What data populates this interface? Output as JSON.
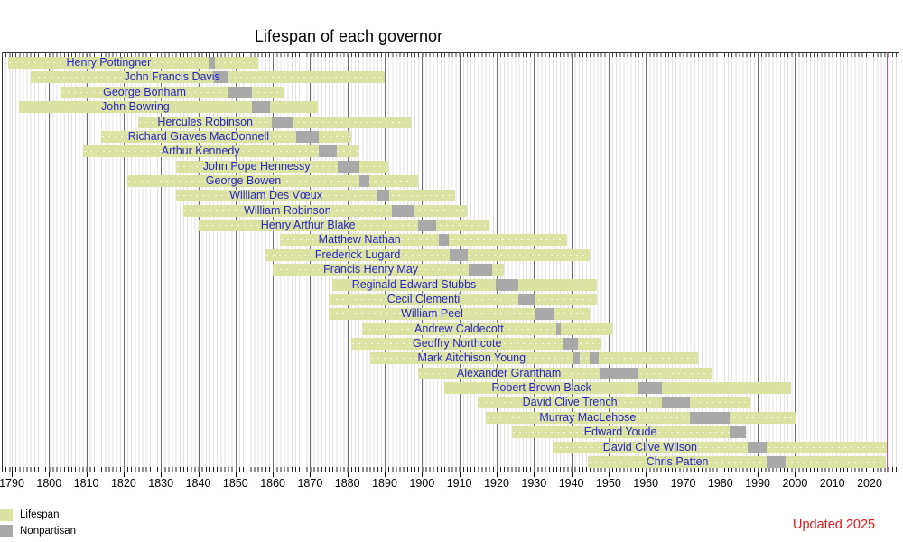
{
  "title": "Lifespan of each governor",
  "legend": {
    "items": [
      {
        "label": "Lifespan",
        "color": "#dce2a2"
      },
      {
        "label": "Nonpartisan",
        "color": "#a9a9a9"
      }
    ]
  },
  "updated_note": {
    "text": "Updated 2025",
    "color": "#e81414"
  },
  "chart_data": {
    "type": "timeline",
    "title": "Lifespan of each governor",
    "axis": {
      "min_year": 1788,
      "max_year": 2028,
      "minor_tick_interval": 1,
      "major_tick_interval": 10,
      "tick_labels": [
        1790,
        1800,
        1810,
        1820,
        1830,
        1840,
        1850,
        1860,
        1870,
        1880,
        1890,
        1900,
        1910,
        1920,
        1930,
        1940,
        1950,
        1960,
        1970,
        1980,
        1990,
        2000,
        2010,
        2020
      ]
    },
    "now_line_year": 2024.5,
    "colors": {
      "lifespan": "#dce2a2",
      "term": "#a9a9a9",
      "now_line": "#a95aa4",
      "label_text": "#2626c9",
      "decade_grid": "#6f6f6f",
      "annual_grid": "#e3e3e3"
    },
    "series_meaning": {
      "bar": "Lifespan",
      "segment": "Nonpartisan governor term"
    },
    "governors": [
      {
        "name": "Henry Pottingner",
        "birth": 1789,
        "death": 1856,
        "terms": [
          [
            1843,
            1844.4
          ]
        ]
      },
      {
        "name": "John Francis Davis",
        "birth": 1795,
        "death": 1890,
        "terms": [
          [
            1844.3,
            1848.2
          ]
        ],
        "label_year": 1833
      },
      {
        "name": "George Bonham",
        "birth": 1803,
        "death": 1863,
        "terms": [
          [
            1848.2,
            1854.3
          ]
        ]
      },
      {
        "name": "John Bowring",
        "birth": 1792,
        "death": 1872,
        "terms": [
          [
            1854.3,
            1859.3
          ]
        ]
      },
      {
        "name": "Hercules Robinson",
        "birth": 1824,
        "death": 1897,
        "terms": [
          [
            1859.7,
            1865.2
          ]
        ]
      },
      {
        "name": "Richard Graves MacDonnell",
        "birth": 1814,
        "death": 1881,
        "terms": [
          [
            1866.2,
            1872.3
          ]
        ]
      },
      {
        "name": "Arthur Kennedy",
        "birth": 1809,
        "death": 1883,
        "terms": [
          [
            1872.3,
            1877.2
          ]
        ]
      },
      {
        "name": "John Pope Hennessy",
        "birth": 1834,
        "death": 1891,
        "terms": [
          [
            1877.3,
            1883.2
          ]
        ]
      },
      {
        "name": "George Bowen",
        "birth": 1821,
        "death": 1899,
        "terms": [
          [
            1883.2,
            1885.9
          ]
        ]
      },
      {
        "name": "William Des Vœux",
        "birth": 1834,
        "death": 1909,
        "terms": [
          [
            1887.7,
            1891.3
          ]
        ]
      },
      {
        "name": "William Robinson",
        "birth": 1836,
        "death": 1912,
        "terms": [
          [
            1891.9,
            1898.1
          ]
        ]
      },
      {
        "name": "Henry Arthur Blake",
        "birth": 1840,
        "death": 1918,
        "terms": [
          [
            1898.9,
            1903.9
          ]
        ]
      },
      {
        "name": "Matthew Nathan",
        "birth": 1862,
        "death": 1939,
        "terms": [
          [
            1904.5,
            1907.3
          ]
        ]
      },
      {
        "name": "Frederick Lugard",
        "birth": 1858,
        "death": 1945,
        "terms": [
          [
            1907.5,
            1912.2
          ]
        ]
      },
      {
        "name": "Francis Henry May",
        "birth": 1860,
        "death": 1922,
        "terms": [
          [
            1912.5,
            1918.7
          ]
        ]
      },
      {
        "name": "Reginald Edward Stubbs",
        "birth": 1876,
        "death": 1947,
        "terms": [
          [
            1919.7,
            1925.8
          ]
        ]
      },
      {
        "name": "Cecil Clementi",
        "birth": 1875,
        "death": 1947,
        "terms": [
          [
            1925.8,
            1930.1
          ]
        ]
      },
      {
        "name": "William Peel",
        "birth": 1875,
        "death": 1945,
        "terms": [
          [
            1930.4,
            1935.4
          ]
        ]
      },
      {
        "name": "Andrew Caldecott",
        "birth": 1884,
        "death": 1951,
        "terms": [
          [
            1935.9,
            1937.3
          ]
        ]
      },
      {
        "name": "Geoffry Northcote",
        "birth": 1881,
        "death": 1948,
        "terms": [
          [
            1937.8,
            1941.7
          ]
        ]
      },
      {
        "name": "Mark Aitchison Young",
        "birth": 1886,
        "death": 1974,
        "terms": [
          [
            1940.6,
            1942.3
          ],
          [
            1945,
            1947.4
          ]
        ]
      },
      {
        "name": "Alexander Grantham",
        "birth": 1899,
        "death": 1978,
        "terms": [
          [
            1947.6,
            1957.9
          ]
        ]
      },
      {
        "name": "Robert Brown Black",
        "birth": 1906,
        "death": 1999,
        "terms": [
          [
            1958.1,
            1964.3
          ]
        ]
      },
      {
        "name": "David Clive Trench",
        "birth": 1915,
        "death": 1988,
        "terms": [
          [
            1964.3,
            1971.8
          ]
        ]
      },
      {
        "name": "Murray MacLehose",
        "birth": 1917,
        "death": 2000.4,
        "terms": [
          [
            1971.9,
            1982.4
          ]
        ]
      },
      {
        "name": "Edward Youde",
        "birth": 1924,
        "death": 1986.9,
        "terms": [
          [
            1982.4,
            1986.9
          ]
        ]
      },
      {
        "name": "David Clive Wilson",
        "birth": 1935,
        "death": null,
        "terms": [
          [
            1987.3,
            1992.5
          ]
        ]
      },
      {
        "name": "Chris Patten",
        "birth": 1944.4,
        "death": null,
        "terms": [
          [
            1992.5,
            1997.5
          ]
        ]
      }
    ]
  }
}
